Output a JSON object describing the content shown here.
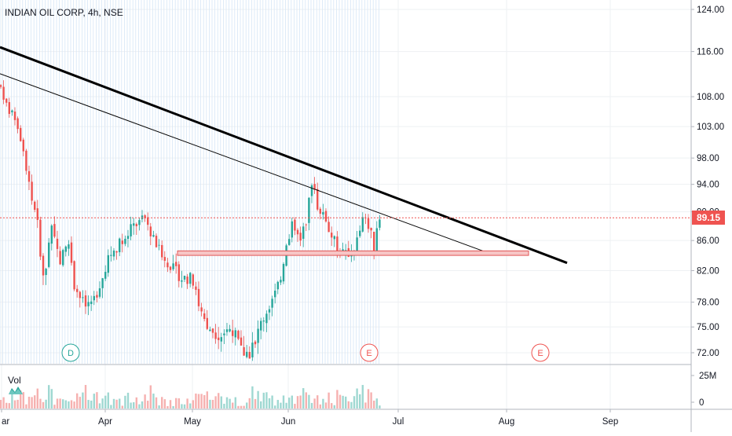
{
  "header": {
    "symbol_line": "INDIAN OIL CORP, 4h, NSE"
  },
  "volume": {
    "label": "Vol",
    "axis_labels": [
      "25M",
      "0"
    ]
  },
  "events": [
    {
      "letter": "D",
      "kind": "dividend",
      "color": "#26a69a"
    },
    {
      "letter": "E",
      "kind": "earnings",
      "color": "#ef5350"
    },
    {
      "letter": "E",
      "kind": "earnings",
      "color": "#ef5350"
    }
  ],
  "colors": {
    "up": "#26a69a",
    "down": "#ef5350",
    "volume_up": "#9fd8d2",
    "volume_down": "#f6b1b0",
    "price_badge": "#ef5350",
    "trendline": "#000000",
    "support_zone": "#f0a0a0"
  },
  "chart_data": {
    "type": "candlestick",
    "title": "INDIAN OIL CORP, 4h, NSE",
    "y_scale": "log",
    "ylim": [
      70.0,
      125.0
    ],
    "y_ticks": [
      "124.00",
      "116.00",
      "108.00",
      "103.00",
      "98.00",
      "94.00",
      "90.00",
      "86.00",
      "82.00",
      "78.00",
      "75.00",
      "72.00"
    ],
    "x_ticks": [
      "Mar",
      "Apr",
      "May",
      "Jun",
      "Jul",
      "Aug",
      "Sep"
    ],
    "last_price": "89.15",
    "support_level": [
      84.0,
      84.6
    ],
    "trendlines": [
      {
        "style": "thick",
        "from_price": 116.8,
        "to_price": 83.0
      },
      {
        "style": "thin",
        "from_price": 112.0,
        "to_price": 84.2
      }
    ],
    "series": [
      {
        "name": "Price",
        "key_points": [
          {
            "date": "Mar",
            "price": 108
          },
          {
            "date": "mid-Mar",
            "price": 78
          },
          {
            "date": "late-Mar",
            "price": 77
          },
          {
            "date": "mid-Apr",
            "price": 89
          },
          {
            "date": "late-Apr",
            "price": 82
          },
          {
            "date": "mid-May",
            "price": 75
          },
          {
            "date": "late-May",
            "price": 72
          },
          {
            "date": "Jun",
            "price": 84
          },
          {
            "date": "early-Jun",
            "price": 95
          },
          {
            "date": "mid-Jun",
            "price": 84
          },
          {
            "date": "late-Jun",
            "price": 89.15
          }
        ]
      }
    ]
  }
}
